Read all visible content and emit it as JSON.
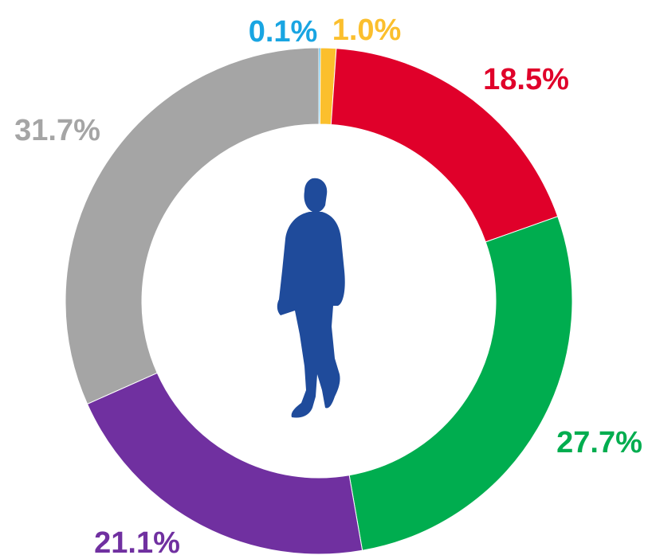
{
  "chart_data": {
    "type": "donut",
    "values": [
      0.1,
      1.0,
      18.5,
      27.7,
      21.1,
      31.7
    ],
    "value_labels": [
      "0.1%",
      "1.0%",
      "18.5%",
      "27.7%",
      "21.1%",
      "31.7%"
    ],
    "colors": [
      "#19a5e2",
      "#fbbf2d",
      "#e0002a",
      "#00ad4f",
      "#7030a0",
      "#a5a5a5"
    ]
  }
}
